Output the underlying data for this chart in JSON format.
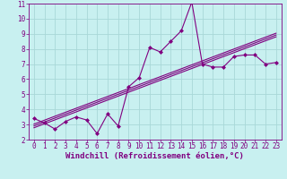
{
  "x": [
    0,
    1,
    2,
    3,
    4,
    5,
    6,
    7,
    8,
    9,
    10,
    11,
    12,
    13,
    14,
    15,
    16,
    17,
    18,
    19,
    20,
    21,
    22,
    23
  ],
  "y": [
    3.4,
    3.1,
    2.7,
    3.2,
    3.5,
    3.3,
    2.4,
    3.7,
    2.9,
    5.5,
    6.1,
    8.1,
    7.8,
    8.5,
    9.2,
    11.1,
    7.0,
    6.8,
    6.8,
    7.5,
    7.6,
    7.6,
    7.0,
    7.1
  ],
  "xlim": [
    -0.5,
    23.5
  ],
  "ylim": [
    2,
    11
  ],
  "yticks": [
    2,
    3,
    4,
    5,
    6,
    7,
    8,
    9,
    10,
    11
  ],
  "xticks": [
    0,
    1,
    2,
    3,
    4,
    5,
    6,
    7,
    8,
    9,
    10,
    11,
    12,
    13,
    14,
    15,
    16,
    17,
    18,
    19,
    20,
    21,
    22,
    23
  ],
  "xtick_labels": [
    "0",
    "1",
    "2",
    "3",
    "4",
    "5",
    "6",
    "7",
    "8",
    "9",
    "10",
    "11",
    "12",
    "13",
    "14",
    "15",
    "16",
    "17",
    "18",
    "19",
    "20",
    "21",
    "22",
    "23"
  ],
  "line_color": "#800080",
  "bg_color": "#c8f0f0",
  "grid_color": "#a8d8d8",
  "xlabel": "Windchill (Refroidissement éolien,°C)",
  "regression_color": "#800080",
  "marker": "D",
  "marker_size": 2.0,
  "font_color": "#800080",
  "tick_fontsize": 5.5,
  "label_fontsize": 6.5,
  "reg_offsets": [
    -0.12,
    0.0,
    0.12
  ]
}
